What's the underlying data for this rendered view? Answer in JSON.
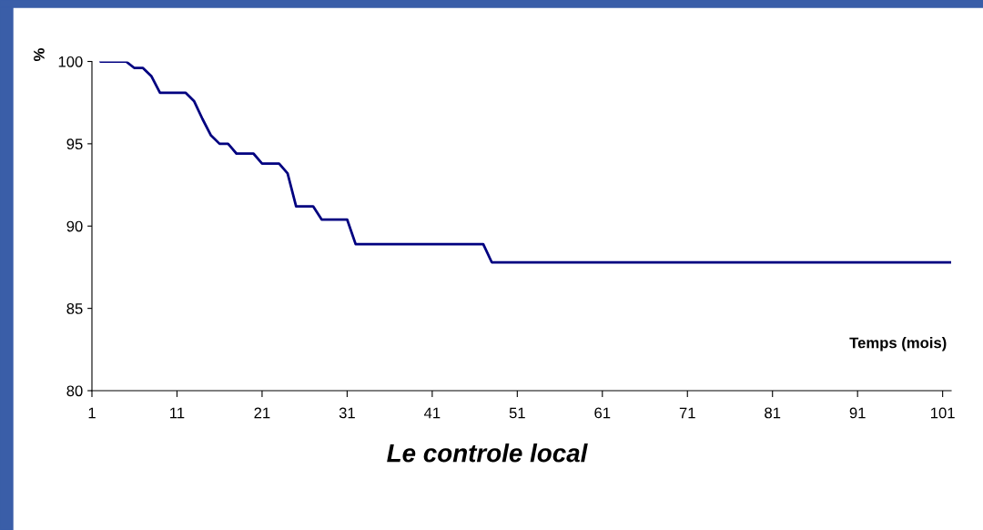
{
  "chart_data": {
    "type": "line",
    "title": "Le controle local",
    "xlabel": "Temps (mois)",
    "ylabel": "%",
    "x": [
      2,
      5,
      6,
      7,
      8,
      9,
      12,
      13,
      14,
      15,
      16,
      17,
      18,
      20,
      21,
      23,
      24,
      25,
      27,
      28,
      31,
      32,
      47,
      48,
      102
    ],
    "series": [
      {
        "color": "#000080",
        "values": [
          100,
          100,
          99.6,
          99.6,
          99.1,
          98.1,
          98.1,
          97.6,
          96.5,
          95.5,
          95.0,
          95.0,
          94.4,
          94.4,
          93.8,
          93.8,
          93.2,
          91.2,
          91.2,
          90.4,
          90.4,
          88.9,
          88.9,
          87.8,
          87.8
        ]
      }
    ],
    "xlim": [
      1,
      102
    ],
    "xticks": [
      1,
      11,
      21,
      31,
      41,
      51,
      61,
      71,
      81,
      91,
      101
    ],
    "ylim": [
      80,
      100
    ],
    "yticks": [
      80,
      85,
      90,
      95,
      100
    ],
    "grid": false,
    "legend": false,
    "marker": "none",
    "line_style": "solid"
  }
}
